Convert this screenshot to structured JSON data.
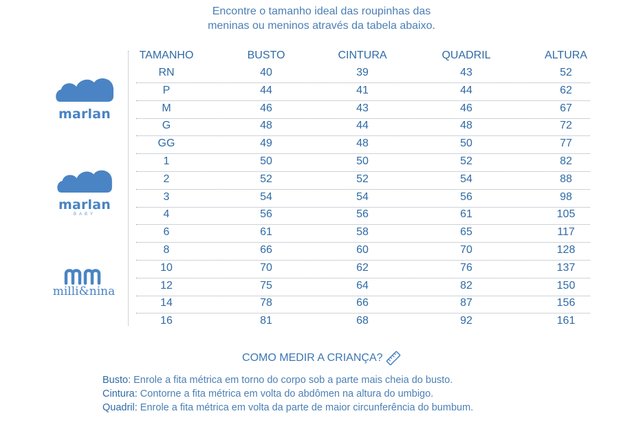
{
  "intro": {
    "line1": "Encontre o tamanho ideal das roupinhas das",
    "line2": "meninas ou meninos através da tabela abaixo."
  },
  "table": {
    "headers": [
      "TAMANHO",
      "BUSTO",
      "CINTURA",
      "QUADRIL",
      "ALTURA"
    ],
    "rows": [
      [
        "RN",
        "40",
        "39",
        "43",
        "52"
      ],
      [
        "P",
        "44",
        "41",
        "44",
        "62"
      ],
      [
        "M",
        "46",
        "43",
        "46",
        "67"
      ],
      [
        "G",
        "48",
        "44",
        "48",
        "72"
      ],
      [
        "GG",
        "49",
        "48",
        "50",
        "77"
      ],
      [
        "1",
        "50",
        "50",
        "52",
        "82"
      ],
      [
        "2",
        "52",
        "52",
        "54",
        "88"
      ],
      [
        "3",
        "54",
        "54",
        "56",
        "98"
      ],
      [
        "4",
        "56",
        "56",
        "61",
        "105"
      ],
      [
        "6",
        "61",
        "58",
        "65",
        "117"
      ],
      [
        "8",
        "66",
        "60",
        "70",
        "128"
      ],
      [
        "10",
        "70",
        "62",
        "76",
        "137"
      ],
      [
        "12",
        "75",
        "64",
        "82",
        "150"
      ],
      [
        "14",
        "78",
        "66",
        "87",
        "156"
      ],
      [
        "16",
        "81",
        "68",
        "92",
        "161"
      ]
    ]
  },
  "brands": {
    "marlan": "marlan",
    "marlan_baby": "marlan",
    "marlan_baby_sub": "BABY",
    "millinina": "milli&nina"
  },
  "how_to": {
    "title": "COMO MEDIR A CRIANÇA?",
    "icon": "ruler-icon",
    "busto_label": "Busto:",
    "busto_text": " Enrole a fita métrica em torno do corpo sob a parte mais cheia do busto.",
    "cintura_label": "Cintura:",
    "cintura_text": " Contorne a fita métrica em volta do abdômen na altura do umbigo.",
    "quadril_label": "Quadril:",
    "quadril_text": " Enrole a fita métrica em volta da parte de maior circunferência do bumbum."
  },
  "colors": {
    "text": "#2f6aa5",
    "brand": "#4a84c4",
    "divider": "#9aa7b5"
  }
}
